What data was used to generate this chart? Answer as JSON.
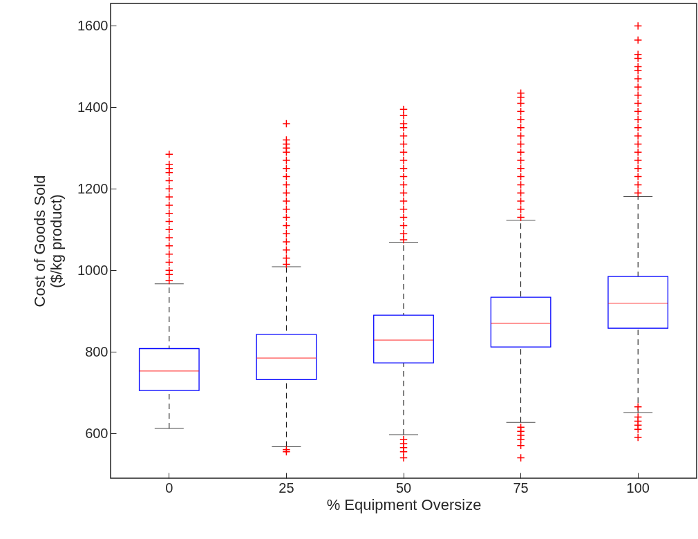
{
  "chart_data": {
    "type": "box",
    "xlabel": "% Equipment Oversize",
    "ylabel": "Cost of Goods Sold\n($/kg product)",
    "categories": [
      "0",
      "25",
      "50",
      "75",
      "100"
    ],
    "ylim": [
      490,
      1655
    ],
    "yticks": [
      600,
      800,
      1000,
      1200,
      1400,
      1600
    ],
    "grid": false,
    "marker": "cross",
    "line_style": "dashed",
    "series": [
      {
        "color": "#0000ff",
        "boxes": [
          {
            "low": 612,
            "q1": 705,
            "median": 753,
            "q3": 808,
            "high": 967,
            "outliers": [
              975,
              990,
              1000,
              1020,
              1040,
              1060,
              1080,
              1100,
              1120,
              1140,
              1160,
              1180,
              1200,
              1220,
              1240,
              1250,
              1260,
              1285
            ]
          },
          {
            "low": 567,
            "q1": 732,
            "median": 785,
            "q3": 843,
            "high": 1009,
            "outliers": [
              555,
              560,
              1015,
              1030,
              1050,
              1070,
              1090,
              1110,
              1130,
              1150,
              1170,
              1190,
              1210,
              1230,
              1250,
              1270,
              1290,
              1300,
              1310,
              1320,
              1360
            ]
          },
          {
            "low": 597,
            "q1": 773,
            "median": 829,
            "q3": 890,
            "high": 1069,
            "outliers": [
              540,
              555,
              565,
              575,
              585,
              1075,
              1090,
              1110,
              1130,
              1150,
              1170,
              1190,
              1210,
              1230,
              1250,
              1270,
              1290,
              1310,
              1330,
              1350,
              1360,
              1380,
              1395
            ]
          },
          {
            "low": 627,
            "q1": 812,
            "median": 870,
            "q3": 934,
            "high": 1123,
            "outliers": [
              540,
              570,
              585,
              595,
              605,
              615,
              1130,
              1150,
              1170,
              1190,
              1210,
              1230,
              1250,
              1270,
              1290,
              1310,
              1330,
              1350,
              1370,
              1390,
              1410,
              1425,
              1435
            ]
          },
          {
            "low": 651,
            "q1": 858,
            "median": 919,
            "q3": 985,
            "high": 1181,
            "outliers": [
              590,
              610,
              620,
              630,
              640,
              665,
              1190,
              1210,
              1230,
              1250,
              1270,
              1290,
              1310,
              1330,
              1350,
              1370,
              1390,
              1410,
              1430,
              1450,
              1470,
              1490,
              1500,
              1520,
              1530,
              1565,
              1600
            ]
          }
        ]
      }
    ]
  }
}
